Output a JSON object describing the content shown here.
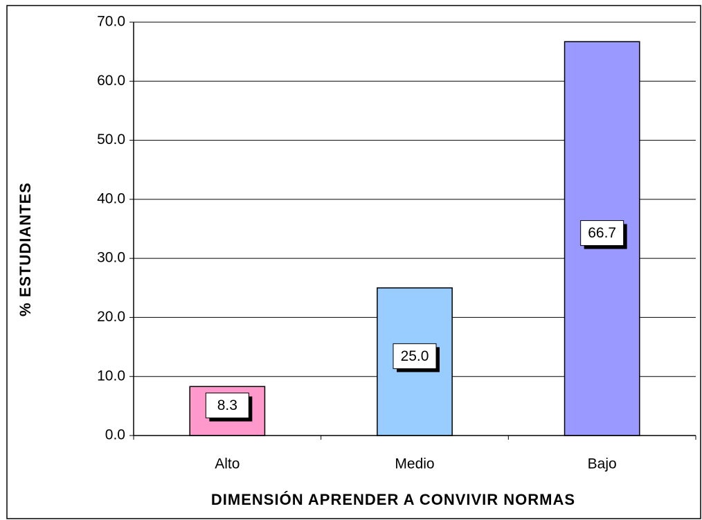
{
  "chart_data": {
    "type": "bar",
    "categories": [
      "Alto",
      "Medio",
      "Bajo"
    ],
    "values": [
      8.3,
      25.0,
      66.7
    ],
    "value_labels": [
      "8.3",
      "25.0",
      "66.7"
    ],
    "colors": [
      "#ff99cc",
      "#99ccff",
      "#9999ff"
    ],
    "ylabel": "% ESTUDIANTES",
    "xlabel": "DIMENSIÓN APRENDER A CONVIVIR NORMAS",
    "ylim": [
      0,
      70
    ],
    "yticks": [
      {
        "value": 0,
        "label": "0.0"
      },
      {
        "value": 10,
        "label": "10.0"
      },
      {
        "value": 20,
        "label": "20.0"
      },
      {
        "value": 30,
        "label": "30.0"
      },
      {
        "value": 40,
        "label": "40.0"
      },
      {
        "value": 50,
        "label": "50.0"
      },
      {
        "value": 60,
        "label": "60.0"
      },
      {
        "value": 70,
        "label": "70.0"
      }
    ],
    "grid": true
  }
}
